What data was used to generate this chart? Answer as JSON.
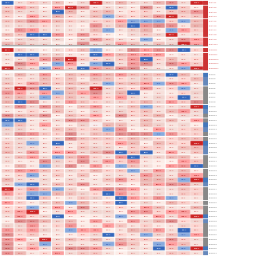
{
  "n_cols": 16,
  "n_rows": 55,
  "row_labels": [
    "Bv-PAL01",
    "Bv-PAL02",
    "Bv-PAL03",
    "Bv-PAL04",
    "Bv-PAL05",
    "Bv-PAL06",
    "Bv-PAL07",
    "Bv-PAL08",
    "Bv-PAL09",
    "Bv-PAL010",
    "Bv-PRMT1",
    "Bv-PRMT2",
    "Bv-PRMT3a",
    "Bv-PRMT3b",
    "Bv-PRMT10",
    "Bv-SZT2",
    "Bv-SZT3",
    "Bv-SZT4",
    "Bv-SZT5",
    "Bv-SZT6",
    "Bv-SZT7",
    "Bv-SZT8",
    "Bv-SZT9",
    "Bv-SZT10",
    "Bv-SZT11",
    "Bv-SZT12",
    "Bv-SZT13",
    "Bv-SZT14",
    "Bv-SZT15",
    "Bv-SZT16",
    "Bv-SZT17",
    "Bv-SZT18",
    "Bv-SZT19",
    "Bv-SZT20",
    "Bv-SZT21",
    "Bv-SZT22",
    "Bv-SZT23",
    "Bv-SZT24",
    "Bv-SZT25",
    "Bv-SZT26",
    "Bv-SZT27",
    "Bv-SZT28",
    "Bv-SZT29",
    "Bv-SZT30",
    "Bv-SZT31",
    "Bv-SZT32",
    "Bv-SZT33",
    "Bv-SZT34",
    "Bv-SZT35",
    "Bv-SZT36",
    "Bv-SZT37",
    "Bv-SZT38",
    "Bv-SZT39",
    "Bv-SZT40",
    "Bv-SZT41"
  ],
  "separator_after": [
    9,
    14
  ],
  "group_colors": {
    "PAL": "#cc3333",
    "PRMT": "#cc3333",
    "SZT": "#888888"
  },
  "right_block_colors": [
    "#cc3333",
    "#cc3333",
    "#cc3333",
    "#cc3333",
    "#cc3333",
    "#cc3333",
    "#cc3333",
    "#cc3333",
    "#cc3333",
    "#cc3333",
    "#cc3333",
    "#cc3333",
    "#cc3333",
    "#cc3333",
    "#cc3333",
    "#aaaaaa",
    "#aaaaaa",
    "#aaaaaa",
    "#aaaaaa",
    "#aaaaaa",
    "#aaaaaa",
    "#aaaaaa",
    "#aaaaaa",
    "#aaaaaa",
    "#aaaaaa",
    "#aaaaaa",
    "#aaaaaa",
    "#aaaaaa",
    "#aaaaaa",
    "#aaaaaa",
    "#aaaaaa",
    "#aaaaaa",
    "#aaaaaa",
    "#aaaaaa",
    "#aaaaaa",
    "#aaaaaa",
    "#aaaaaa",
    "#aaaaaa",
    "#aaaaaa",
    "#aaaaaa",
    "#aaaaaa",
    "#aaaaaa",
    "#aaaaaa",
    "#aaaaaa",
    "#aaaaaa",
    "#aaaaaa",
    "#aaaaaa",
    "#aaaaaa",
    "#aaaaaa",
    "#aaaaaa",
    "#aaaaaa",
    "#aaaaaa",
    "#aaaaaa",
    "#aaaaaa",
    "#aaaaaa"
  ],
  "cell_bg_default": "#f5e8e8",
  "cell_bg_red_strong": "#cc2222",
  "cell_bg_red_light": "#f0b0b0",
  "cell_bg_blue_strong": "#3366cc",
  "cell_bg_blue_light": "#aaccee",
  "cell_bg_gray": "#888888",
  "separator_color": "#888888",
  "bg_color": "#ffffff",
  "text_color_red": "#cc2222",
  "text_color_blue": "#3366cc",
  "text_color_white": "#ffffff",
  "text_color_dark": "#555555"
}
